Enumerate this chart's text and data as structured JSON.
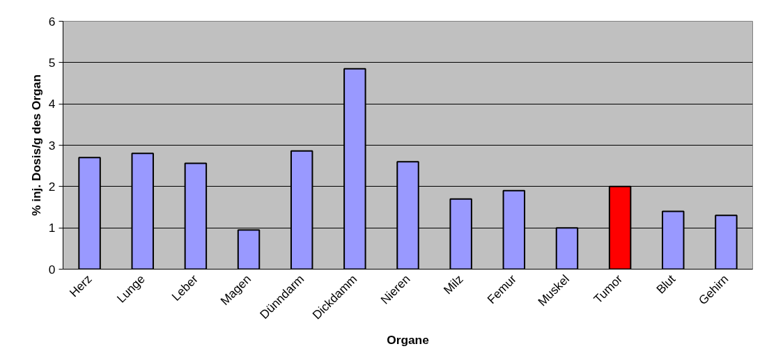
{
  "chart_data": {
    "type": "bar",
    "categories": [
      "Herz",
      "Lunge",
      "Leber",
      "Magen",
      "Dünndarm",
      "Dickdamm",
      "Nieren",
      "Milz",
      "Femur",
      "Muskel",
      "Tumor",
      "Blut",
      "Gehirn"
    ],
    "values": [
      2.7,
      2.8,
      2.56,
      0.95,
      2.86,
      4.85,
      2.6,
      1.7,
      1.9,
      1.0,
      2.0,
      1.4,
      1.3
    ],
    "colors": [
      "#9999ff",
      "#9999ff",
      "#9999ff",
      "#9999ff",
      "#9999ff",
      "#9999ff",
      "#9999ff",
      "#9999ff",
      "#9999ff",
      "#9999ff",
      "#ff0000",
      "#9999ff",
      "#9999ff"
    ],
    "xlabel": "Organe",
    "ylabel": "% inj. Dosis/g des Organ",
    "ylim": [
      0,
      6
    ],
    "yticks": [
      0,
      1,
      2,
      3,
      4,
      5,
      6
    ],
    "grid": "y"
  }
}
